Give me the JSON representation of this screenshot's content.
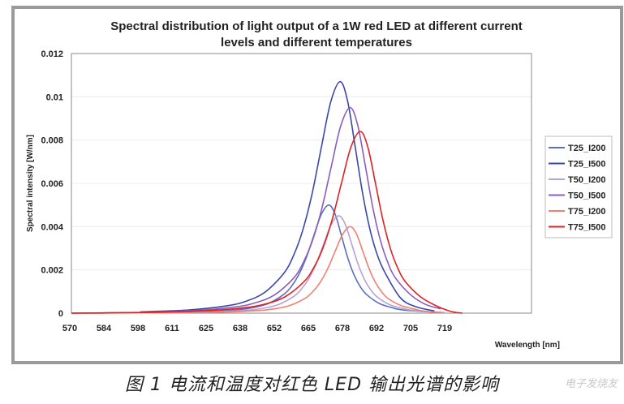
{
  "chart_data": {
    "type": "line",
    "title_lines": [
      "Spectral distribution of light output of a 1W red LED at different current",
      "levels and different temperatures"
    ],
    "xlabel": "Wavelength [nm]",
    "ylabel": "Spectral intensity [W/nm]",
    "xlim": [
      570,
      753
    ],
    "ylim": [
      0,
      0.012
    ],
    "x_tick_labels": [
      "570",
      "584",
      "598",
      "611",
      "625",
      "638",
      "652",
      "665",
      "678",
      "692",
      "705",
      "719"
    ],
    "y_tick_labels": [
      "0",
      "0.002",
      "0.004",
      "0.006",
      "0.008",
      "0.01",
      "0.012"
    ],
    "y_ticks": [
      0,
      0.002,
      0.004,
      0.006,
      0.008,
      0.01,
      0.012
    ],
    "grid": "horizontal",
    "legend_position": "right",
    "series": [
      {
        "name": "T25_I200",
        "color": "#5a6fc0",
        "points": [
          [
            570,
            0
          ],
          [
            598,
            2e-05
          ],
          [
            613,
            4e-05
          ],
          [
            625,
            7e-05
          ],
          [
            637,
            0.00016
          ],
          [
            643,
            0.00026
          ],
          [
            649,
            0.00045
          ],
          [
            655,
            0.00086
          ],
          [
            658,
            0.00122
          ],
          [
            661,
            0.00177
          ],
          [
            664,
            0.00256
          ],
          [
            667,
            0.00358
          ],
          [
            670,
            0.00457
          ],
          [
            673,
            0.005
          ],
          [
            675.5,
            0.00457
          ],
          [
            678,
            0.00358
          ],
          [
            680.5,
            0.00256
          ],
          [
            683,
            0.00177
          ],
          [
            685.5,
            0.00122
          ],
          [
            688,
            0.00086
          ],
          [
            693,
            0.00045
          ],
          [
            698,
            0.00026
          ],
          [
            703,
            0.00014
          ],
          [
            719,
            2e-05
          ]
        ]
      },
      {
        "name": "T25_I500",
        "color": "#3848a8",
        "points": [
          [
            598,
            6e-05
          ],
          [
            602.5,
            8e-05
          ],
          [
            617.5,
            0.00015
          ],
          [
            632.5,
            0.00034
          ],
          [
            640,
            0.00055
          ],
          [
            647.5,
            0.00096
          ],
          [
            655,
            0.00183
          ],
          [
            658.75,
            0.00261
          ],
          [
            662.5,
            0.00379
          ],
          [
            666.25,
            0.00548
          ],
          [
            670,
            0.00766
          ],
          [
            673.75,
            0.00977
          ],
          [
            677.5,
            0.0107
          ],
          [
            680.5,
            0.00977
          ],
          [
            683.5,
            0.00766
          ],
          [
            686.5,
            0.00548
          ],
          [
            689.5,
            0.00379
          ],
          [
            692.5,
            0.00261
          ],
          [
            695.5,
            0.00183
          ],
          [
            701.5,
            0.0007
          ],
          [
            707.5,
            0.0003
          ],
          [
            715,
            0.0001
          ]
        ]
      },
      {
        "name": "T50_I200",
        "color": "#b9a0d6",
        "points": [
          [
            598,
            2e-05
          ],
          [
            617,
            3.4e-05
          ],
          [
            629,
            6.4e-05
          ],
          [
            641,
            0.000142
          ],
          [
            647,
            0.00023
          ],
          [
            653,
            0.0004
          ],
          [
            659,
            0.00077
          ],
          [
            662,
            0.0011
          ],
          [
            665,
            0.00159
          ],
          [
            668,
            0.0023
          ],
          [
            671,
            0.00322
          ],
          [
            674,
            0.00411
          ],
          [
            677,
            0.0045
          ],
          [
            679.5,
            0.00411
          ],
          [
            682,
            0.00322
          ],
          [
            684.5,
            0.0023
          ],
          [
            687,
            0.00159
          ],
          [
            689.5,
            0.0011
          ],
          [
            692,
            0.00077
          ],
          [
            697,
            0.0004
          ],
          [
            702,
            0.00023
          ],
          [
            707,
            0.00012
          ],
          [
            719,
            2e-05
          ]
        ]
      },
      {
        "name": "T50_I500",
        "color": "#8a5cbc",
        "points": [
          [
            598,
            5e-05
          ],
          [
            606.5,
            7e-05
          ],
          [
            621.5,
            0.000136
          ],
          [
            636.5,
            0.0003
          ],
          [
            644,
            0.000486
          ],
          [
            651.5,
            0.00085
          ],
          [
            659,
            0.00162
          ],
          [
            662.75,
            0.00232
          ],
          [
            666.5,
            0.00336
          ],
          [
            670.25,
            0.00486
          ],
          [
            674,
            0.0068
          ],
          [
            677.75,
            0.00867
          ],
          [
            681.5,
            0.0095
          ],
          [
            684.5,
            0.00867
          ],
          [
            687.5,
            0.0068
          ],
          [
            690.5,
            0.00486
          ],
          [
            693.5,
            0.00336
          ],
          [
            696.5,
            0.00232
          ],
          [
            699.5,
            0.00162
          ],
          [
            705.5,
            0.00085
          ],
          [
            711.5,
            0.0004
          ],
          [
            717.5,
            0.0002
          ]
        ]
      },
      {
        "name": "T75_I200",
        "color": "#f08070",
        "points": [
          [
            570,
            0
          ],
          [
            598,
            1e-05
          ],
          [
            621.5,
            3e-05
          ],
          [
            633.5,
            5.7e-05
          ],
          [
            645.5,
            0.000126
          ],
          [
            651.5,
            0.000205
          ],
          [
            657.5,
            0.000358
          ],
          [
            663.5,
            0.000684
          ],
          [
            666.5,
            0.00098
          ],
          [
            669.5,
            0.00142
          ],
          [
            672.5,
            0.00205
          ],
          [
            675.5,
            0.00286
          ],
          [
            678.5,
            0.00365
          ],
          [
            681.5,
            0.004
          ],
          [
            684,
            0.00365
          ],
          [
            686.5,
            0.00286
          ],
          [
            689,
            0.00205
          ],
          [
            691.5,
            0.00142
          ],
          [
            694,
            0.00098
          ],
          [
            696.5,
            0.00068
          ],
          [
            701.5,
            0.00036
          ],
          [
            706.5,
            0.0002
          ],
          [
            711.5,
            8e-05
          ],
          [
            719,
            2e-05
          ]
        ]
      },
      {
        "name": "T75_I500",
        "color": "#e02020",
        "points": [
          [
            570,
            0
          ],
          [
            598,
            3e-05
          ],
          [
            610.5,
            6.3e-05
          ],
          [
            625.5,
            0.00012
          ],
          [
            640.5,
            0.000265
          ],
          [
            648,
            0.00043
          ],
          [
            655.5,
            0.00075
          ],
          [
            663,
            0.00144
          ],
          [
            666.75,
            0.00205
          ],
          [
            670.5,
            0.00297
          ],
          [
            674.25,
            0.0043
          ],
          [
            678,
            0.00601
          ],
          [
            681.75,
            0.00767
          ],
          [
            685.5,
            0.0084
          ],
          [
            688.5,
            0.00767
          ],
          [
            691.5,
            0.00601
          ],
          [
            694.5,
            0.0043
          ],
          [
            697.5,
            0.00297
          ],
          [
            700.5,
            0.00205
          ],
          [
            703.5,
            0.00144
          ],
          [
            709.5,
            0.00075
          ],
          [
            715.5,
            0.00035
          ],
          [
            721.5,
            8e-05
          ],
          [
            726,
            0
          ]
        ]
      }
    ]
  },
  "caption": "图 1  电流和温度对红色 LED 输出光谱的影响",
  "watermark": "电子发烧友"
}
